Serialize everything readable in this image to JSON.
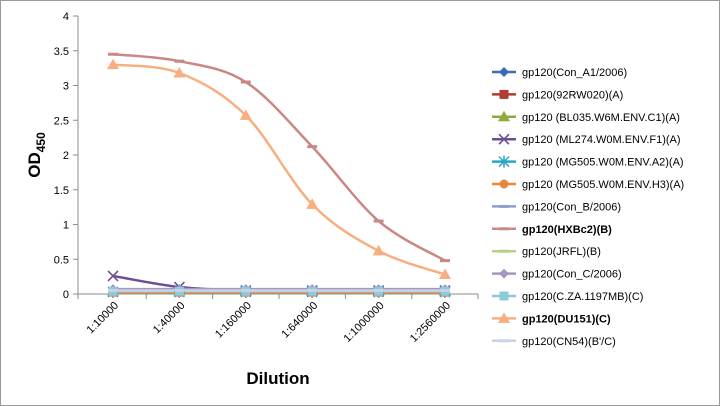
{
  "chart_data": {
    "type": "line",
    "xlabel": "Dilution",
    "ylabel": "OD",
    "ylabel_sub": "450",
    "ylim": [
      0,
      4
    ],
    "yticks": [
      "0",
      "0.5",
      "1",
      "1.5",
      "2",
      "2.5",
      "3",
      "3.5",
      "4"
    ],
    "categories": [
      "1:10000",
      "1:40000",
      "1:160000",
      "1:640000",
      "1:1000000",
      "1:2560000"
    ],
    "grid": false,
    "legend_position": "right",
    "series": [
      {
        "name": "gp120(Con_A1/2006)",
        "color": "#3a6cb4",
        "marker": "diamond",
        "bold": false,
        "smooth": false,
        "values": [
          0.02,
          0.02,
          0.02,
          0.02,
          0.02,
          0.02
        ]
      },
      {
        "name": "gp120(92RW020)(A)",
        "color": "#b03c34",
        "marker": "square",
        "bold": false,
        "smooth": false,
        "values": [
          0.03,
          0.03,
          0.03,
          0.03,
          0.03,
          0.03
        ]
      },
      {
        "name": "gp120 (BL035.W6M.ENV.C1)(A)",
        "color": "#8cab3c",
        "marker": "triangle",
        "bold": false,
        "smooth": false,
        "values": [
          0.04,
          0.04,
          0.04,
          0.04,
          0.04,
          0.04
        ]
      },
      {
        "name": "gp120 (ML274.W0M.ENV.F1)(A)",
        "color": "#6c4f94",
        "marker": "x",
        "bold": false,
        "smooth": true,
        "values": [
          0.26,
          0.1,
          0.05,
          0.05,
          0.05,
          0.05
        ]
      },
      {
        "name": "gp120 (MG505.W0M.ENV.A2)(A)",
        "color": "#2aa4c4",
        "marker": "star",
        "bold": false,
        "smooth": false,
        "values": [
          0.03,
          0.03,
          0.03,
          0.03,
          0.03,
          0.03
        ]
      },
      {
        "name": "gp120 (MG505.W0M.ENV.H3)(A)",
        "color": "#e8883c",
        "marker": "circle",
        "bold": false,
        "smooth": false,
        "values": [
          0.02,
          0.02,
          0.02,
          0.02,
          0.02,
          0.02
        ]
      },
      {
        "name": "gp120(Con_B/2006)",
        "color": "#8aa2c8",
        "marker": "dash",
        "bold": false,
        "smooth": false,
        "values": [
          0.05,
          0.05,
          0.05,
          0.05,
          0.05,
          0.05
        ]
      },
      {
        "name": "gp120(HXBc2)(B)",
        "color": "#c98884",
        "marker": "dash",
        "bold": true,
        "smooth": true,
        "values": [
          3.45,
          3.35,
          3.05,
          2.12,
          1.05,
          0.48
        ]
      },
      {
        "name": "gp120(JRFL)(B)",
        "color": "#b8d08a",
        "marker": "dash",
        "bold": false,
        "smooth": false,
        "values": [
          0.06,
          0.06,
          0.06,
          0.06,
          0.06,
          0.06
        ]
      },
      {
        "name": "gp120(Con_C/2006)",
        "color": "#a596bc",
        "marker": "diamond",
        "bold": false,
        "smooth": false,
        "values": [
          0.07,
          0.07,
          0.07,
          0.07,
          0.07,
          0.07
        ]
      },
      {
        "name": "gp120(C.ZA.1197MB)(C)",
        "color": "#8ccadc",
        "marker": "square",
        "bold": false,
        "smooth": false,
        "values": [
          0.04,
          0.04,
          0.04,
          0.04,
          0.04,
          0.04
        ]
      },
      {
        "name": "gp120(DU151)(C)",
        "color": "#f7ae80",
        "marker": "triangle",
        "bold": true,
        "smooth": true,
        "values": [
          3.3,
          3.18,
          2.57,
          1.29,
          0.62,
          0.28
        ]
      },
      {
        "name": "gp120(CN54)(B'/C)",
        "color": "#c6d2ea",
        "marker": "dash",
        "bold": false,
        "smooth": false,
        "values": [
          0.05,
          0.05,
          0.05,
          0.05,
          0.05,
          0.05
        ]
      }
    ]
  }
}
